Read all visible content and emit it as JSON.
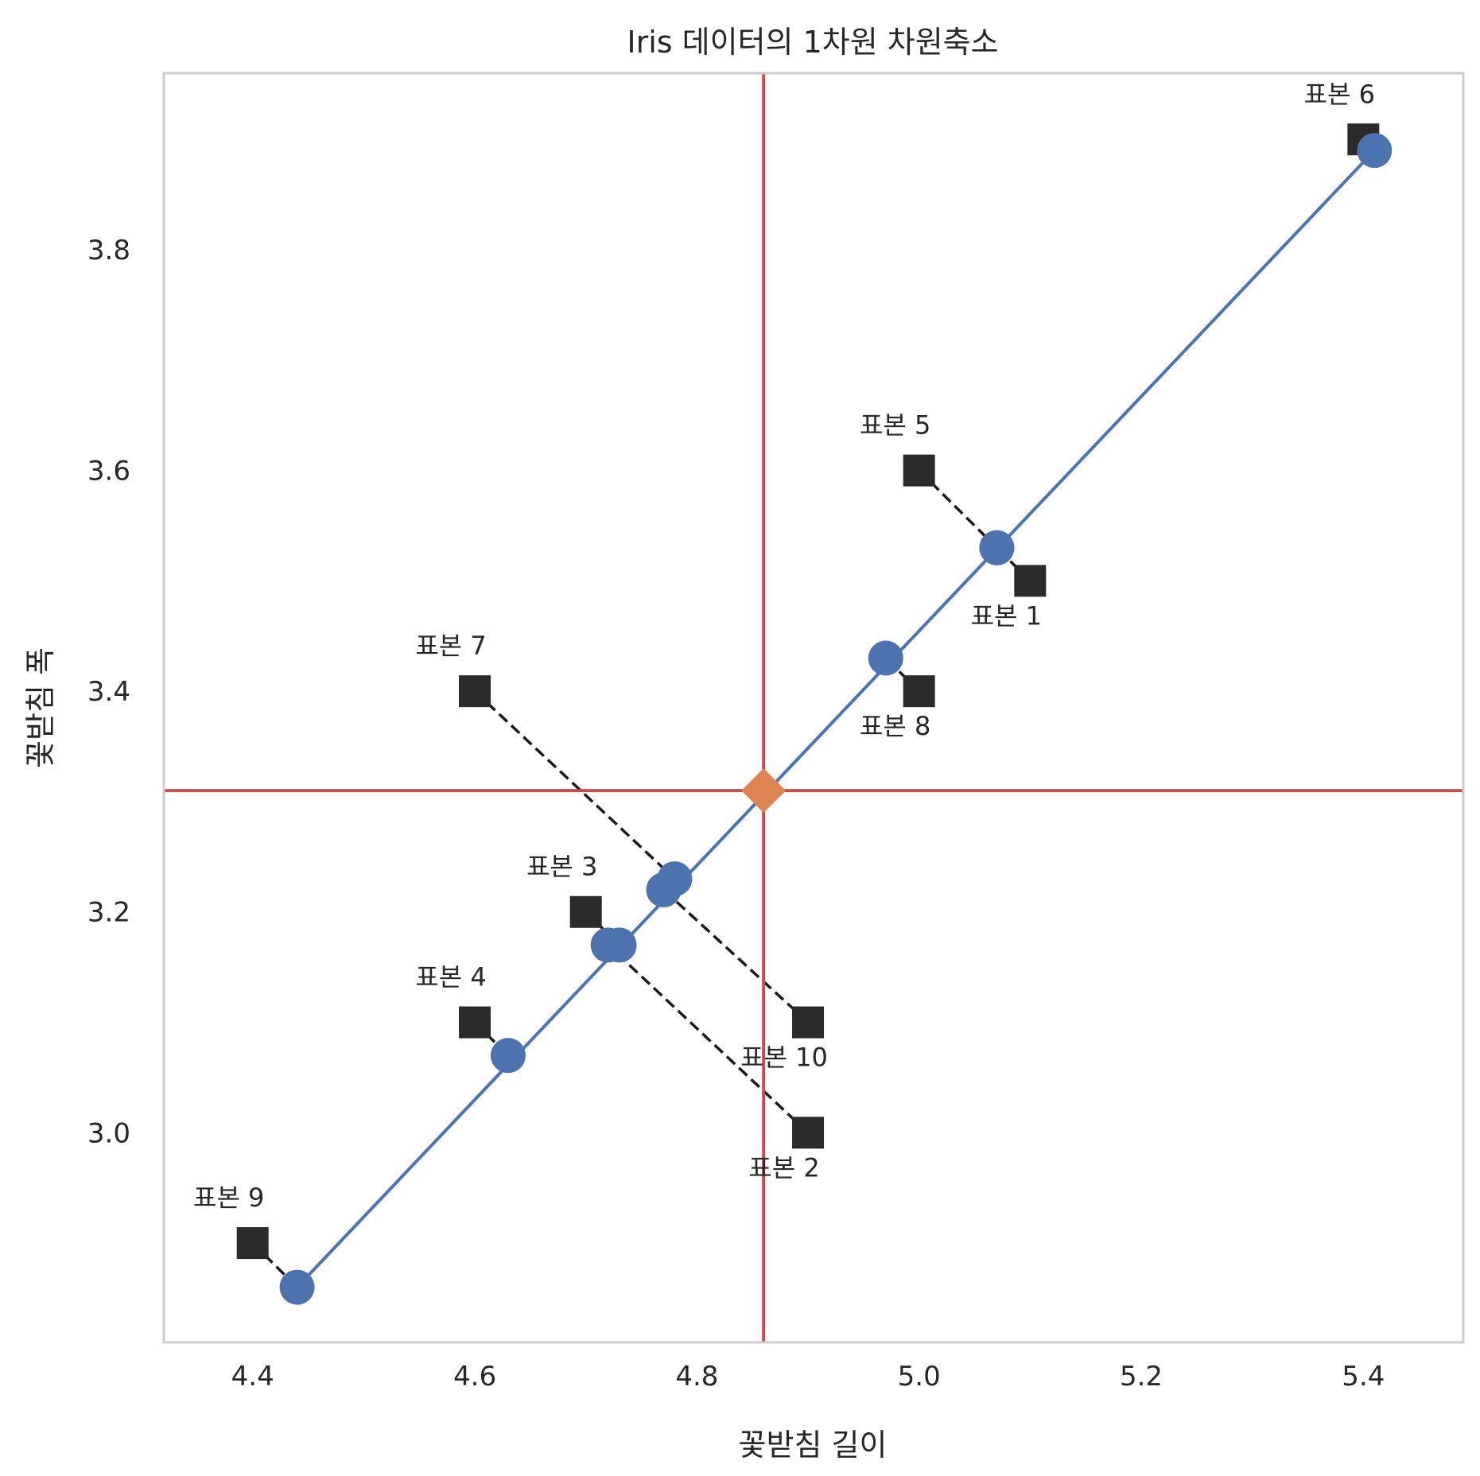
{
  "chart_data": {
    "type": "scatter",
    "title": "Iris 데이터의 1차원 차원축소",
    "xlabel": "꽃받침 길이",
    "ylabel": "꽃받침 폭",
    "xlim": [
      4.32,
      5.49
    ],
    "ylim": [
      2.81,
      3.96
    ],
    "xticks": [
      "4.4",
      "4.6",
      "4.8",
      "5.0",
      "5.2",
      "5.4"
    ],
    "yticks": [
      "3.0",
      "3.2",
      "3.4",
      "3.6",
      "3.8"
    ],
    "grid": false,
    "samples": [
      {
        "label": "표본 1",
        "x": 5.1,
        "y": 3.5,
        "proj_x": 5.07,
        "proj_y": 3.53,
        "label_pos": "below"
      },
      {
        "label": "표본 2",
        "x": 4.9,
        "y": 3.0,
        "proj_x": 4.72,
        "proj_y": 3.17,
        "label_pos": "below"
      },
      {
        "label": "표본 3",
        "x": 4.7,
        "y": 3.2,
        "proj_x": 4.73,
        "proj_y": 3.17,
        "label_pos": "above"
      },
      {
        "label": "표본 4",
        "x": 4.6,
        "y": 3.1,
        "proj_x": 4.63,
        "proj_y": 3.07,
        "label_pos": "above"
      },
      {
        "label": "표본 5",
        "x": 5.0,
        "y": 3.6,
        "proj_x": 5.07,
        "proj_y": 3.53,
        "label_pos": "above"
      },
      {
        "label": "표본 6",
        "x": 5.4,
        "y": 3.9,
        "proj_x": 5.41,
        "proj_y": 3.89,
        "label_pos": "above"
      },
      {
        "label": "표본 7",
        "x": 4.6,
        "y": 3.4,
        "proj_x": 4.78,
        "proj_y": 3.23,
        "label_pos": "above"
      },
      {
        "label": "표본 8",
        "x": 5.0,
        "y": 3.4,
        "proj_x": 4.97,
        "proj_y": 3.43,
        "label_pos": "below"
      },
      {
        "label": "표본 9",
        "x": 4.4,
        "y": 2.9,
        "proj_x": 4.44,
        "proj_y": 2.86,
        "label_pos": "above"
      },
      {
        "label": "표본 10",
        "x": 4.9,
        "y": 3.1,
        "proj_x": 4.77,
        "proj_y": 3.22,
        "label_pos": "below"
      }
    ],
    "mean": {
      "x": 4.86,
      "y": 3.31
    },
    "projection_line": {
      "x": [
        4.44,
        5.41
      ],
      "y": [
        2.86,
        3.89
      ]
    },
    "colors": {
      "sample_marker": "#2b2b2b",
      "projection": "#4c72b0",
      "mean_marker": "#dd8452",
      "mean_lines": "#c44e52",
      "residual": "#1a1a1a",
      "frame": "#cccccc"
    }
  }
}
